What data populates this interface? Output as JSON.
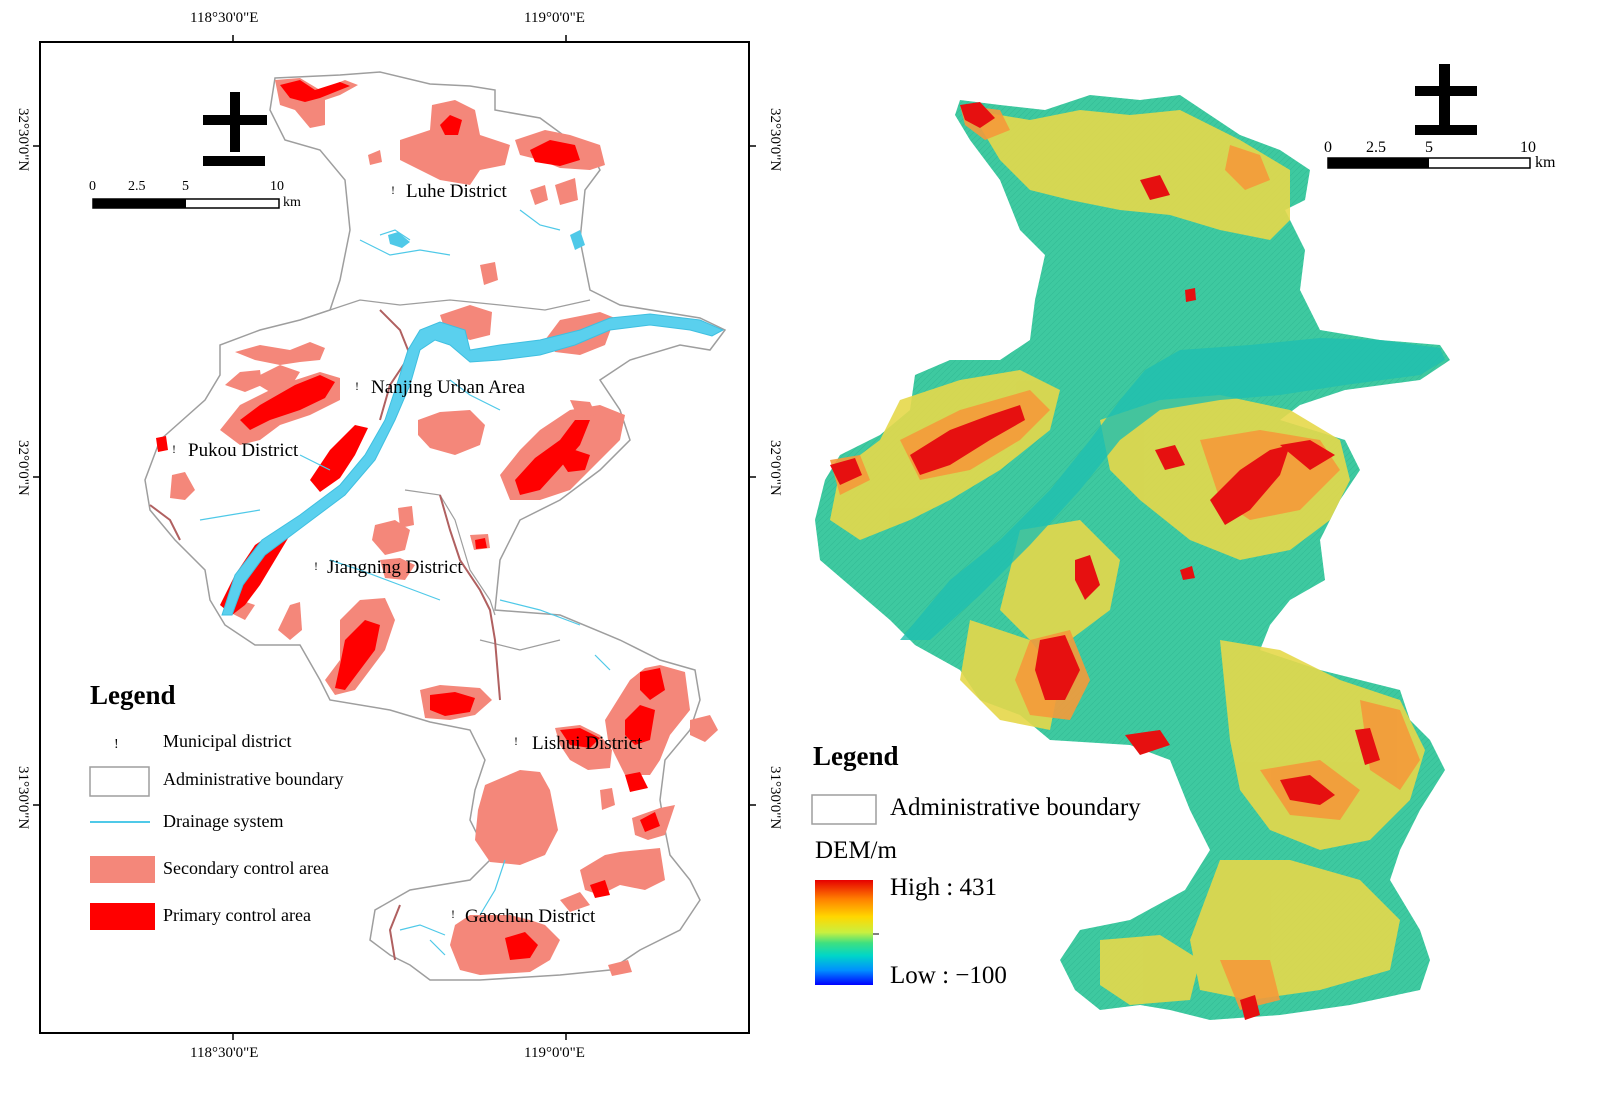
{
  "left_map": {
    "top_coords": [
      "118°30'0\"E",
      "119°0'0\"E"
    ],
    "bottom_coords": [
      "118°30'0\"E",
      "119°0'0\"E"
    ],
    "right_coords": [
      "32°30'0\"N",
      "32°0'0\"N",
      "31°30'0\"N"
    ],
    "left_coords": [
      "32°30'0\"N",
      "32°0'0\"N",
      "31°30'0\"N"
    ],
    "districts": {
      "luhe": "Luhe District",
      "urban": "Nanjing Urban Area",
      "pukou": "Pukou District",
      "jiangning": "Jiangning District",
      "lishui": "Lishui District",
      "gaochun": "Gaochun District"
    },
    "scalebar": {
      "ticks": [
        "0",
        "2.5",
        "5",
        "10"
      ],
      "unit": "km"
    },
    "legend": {
      "title": "Legend",
      "items": [
        "Municipal district",
        "Administrative boundary",
        "Drainage system",
        "Secondary control area",
        "Primary control area"
      ]
    },
    "north_arrow_icon": "north-arrow-icon",
    "colors": {
      "secondary": "#f4877a",
      "primary": "#ff0000",
      "drainage": "#4fc9e8",
      "boundary": "#9e9e9e"
    }
  },
  "right_map": {
    "scalebar": {
      "ticks": [
        "0",
        "2.5",
        "5",
        "10"
      ],
      "unit": "km"
    },
    "legend": {
      "title": "Legend",
      "boundary_label": "Administrative boundary",
      "dem_label": "DEM/m",
      "high": "High : 431",
      "low": "Low : −100"
    },
    "north_arrow_icon": "north-arrow-icon",
    "dem_colors": [
      "#e60000",
      "#ff7f00",
      "#ffd700",
      "#ffff40",
      "#55e07a",
      "#00d9a0",
      "#0099ff",
      "#0000ff"
    ]
  }
}
